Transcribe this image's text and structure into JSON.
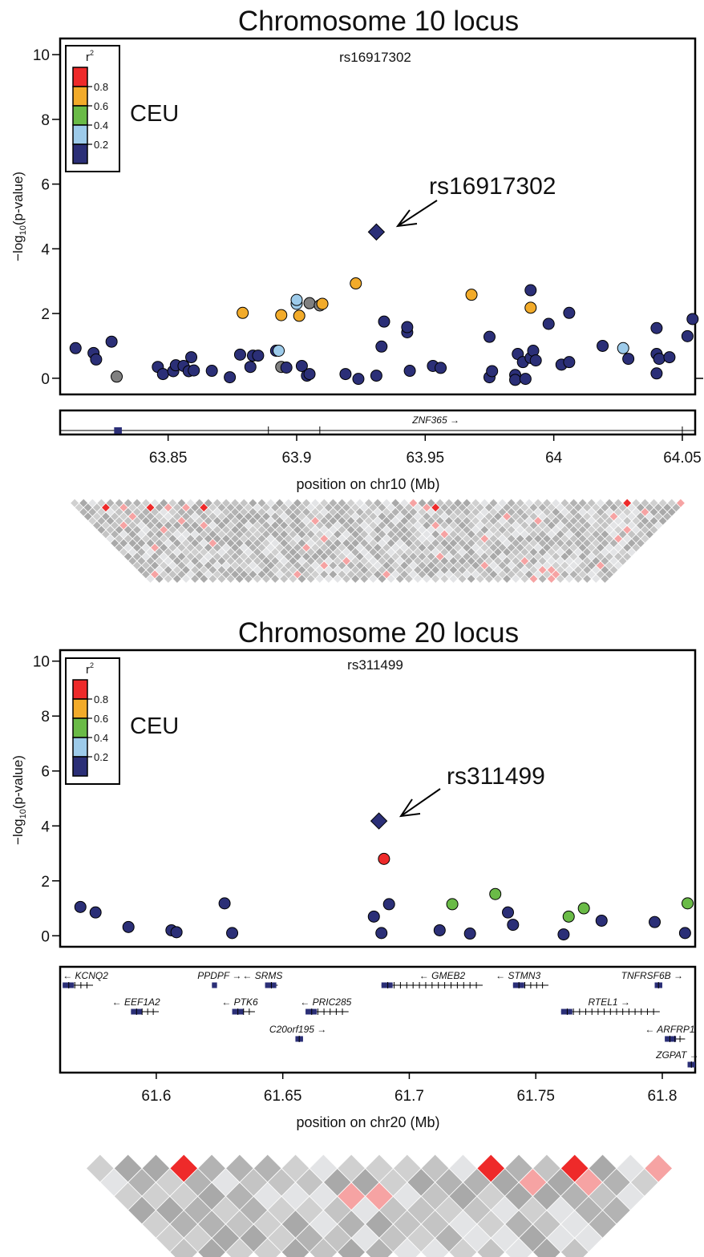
{
  "legend": {
    "title_base": "r",
    "title_sup": "2",
    "ticks": [
      "0.8",
      "0.6",
      "0.4",
      "0.2"
    ],
    "colors": [
      "#ee2a2a",
      "#f2ab2a",
      "#6abb47",
      "#9dcbea",
      "#2b2f77"
    ],
    "population": "CEU"
  },
  "colors": {
    "high": "#ee2a2a",
    "mid_high": "#f2ab2a",
    "mid": "#6abb47",
    "low": "#9dcbea",
    "lowest": "#2b2f77",
    "missing": "#808080",
    "gene_box": "#2b2f77",
    "ld_gray": "#b3b3b3"
  },
  "chart_data": [
    {
      "type": "scatter",
      "title": "Chromosome 10 locus",
      "top_label": "rs16917302",
      "ylabel_pre": "−log",
      "ylabel_sub": "10",
      "ylabel_post": "(p-value)",
      "xlabel": "position on chr10 (Mb)",
      "xlim": [
        63.808,
        64.055
      ],
      "ylim": [
        -0.5,
        10.5
      ],
      "yticks": [
        "0",
        "2",
        "4",
        "6",
        "8",
        "10"
      ],
      "xticks": [
        "63.85",
        "63.9",
        "63.95",
        "64",
        "64.05"
      ],
      "lead": {
        "name": "rs16917302",
        "x": 63.931,
        "y": 4.52
      },
      "points": [
        {
          "x": 63.814,
          "y": 0.93,
          "c": "lowest"
        },
        {
          "x": 63.821,
          "y": 0.78,
          "c": "lowest"
        },
        {
          "x": 63.822,
          "y": 0.58,
          "c": "lowest"
        },
        {
          "x": 63.828,
          "y": 1.13,
          "c": "lowest"
        },
        {
          "x": 63.83,
          "y": 0.05,
          "c": "missing"
        },
        {
          "x": 63.846,
          "y": 0.35,
          "c": "lowest"
        },
        {
          "x": 63.848,
          "y": 0.13,
          "c": "lowest"
        },
        {
          "x": 63.852,
          "y": 0.22,
          "c": "lowest"
        },
        {
          "x": 63.853,
          "y": 0.4,
          "c": "lowest"
        },
        {
          "x": 63.856,
          "y": 0.38,
          "c": "lowest"
        },
        {
          "x": 63.858,
          "y": 0.22,
          "c": "lowest"
        },
        {
          "x": 63.859,
          "y": 0.65,
          "c": "lowest"
        },
        {
          "x": 63.86,
          "y": 0.24,
          "c": "lowest"
        },
        {
          "x": 63.867,
          "y": 0.23,
          "c": "lowest"
        },
        {
          "x": 63.874,
          "y": 0.03,
          "c": "lowest"
        },
        {
          "x": 63.878,
          "y": 0.73,
          "c": "lowest"
        },
        {
          "x": 63.879,
          "y": 2.02,
          "c": "mid_high"
        },
        {
          "x": 63.882,
          "y": 0.35,
          "c": "lowest"
        },
        {
          "x": 63.883,
          "y": 0.7,
          "c": "lowest"
        },
        {
          "x": 63.885,
          "y": 0.7,
          "c": "lowest"
        },
        {
          "x": 63.892,
          "y": 0.85,
          "c": "lowest"
        },
        {
          "x": 63.893,
          "y": 0.85,
          "c": "low"
        },
        {
          "x": 63.894,
          "y": 0.35,
          "c": "missing"
        },
        {
          "x": 63.894,
          "y": 1.95,
          "c": "mid_high"
        },
        {
          "x": 63.896,
          "y": 0.33,
          "c": "lowest"
        },
        {
          "x": 63.9,
          "y": 2.3,
          "c": "low"
        },
        {
          "x": 63.9,
          "y": 2.42,
          "c": "low"
        },
        {
          "x": 63.901,
          "y": 1.93,
          "c": "mid_high"
        },
        {
          "x": 63.902,
          "y": 0.38,
          "c": "lowest"
        },
        {
          "x": 63.904,
          "y": 0.08,
          "c": "lowest"
        },
        {
          "x": 63.905,
          "y": 0.13,
          "c": "lowest"
        },
        {
          "x": 63.905,
          "y": 2.32,
          "c": "missing"
        },
        {
          "x": 63.909,
          "y": 2.25,
          "c": "missing"
        },
        {
          "x": 63.91,
          "y": 2.3,
          "c": "mid_high"
        },
        {
          "x": 63.919,
          "y": 0.13,
          "c": "lowest"
        },
        {
          "x": 63.923,
          "y": 2.93,
          "c": "mid_high"
        },
        {
          "x": 63.924,
          "y": -0.02,
          "c": "lowest"
        },
        {
          "x": 63.931,
          "y": 0.08,
          "c": "lowest"
        },
        {
          "x": 63.933,
          "y": 0.98,
          "c": "lowest"
        },
        {
          "x": 63.934,
          "y": 1.75,
          "c": "lowest"
        },
        {
          "x": 63.943,
          "y": 1.42,
          "c": "lowest"
        },
        {
          "x": 63.943,
          "y": 1.58,
          "c": "lowest"
        },
        {
          "x": 63.944,
          "y": 0.23,
          "c": "lowest"
        },
        {
          "x": 63.953,
          "y": 0.38,
          "c": "lowest"
        },
        {
          "x": 63.956,
          "y": 0.32,
          "c": "lowest"
        },
        {
          "x": 63.968,
          "y": 2.58,
          "c": "mid_high"
        },
        {
          "x": 63.975,
          "y": 1.28,
          "c": "lowest"
        },
        {
          "x": 63.975,
          "y": 0.03,
          "c": "lowest"
        },
        {
          "x": 63.976,
          "y": 0.22,
          "c": "lowest"
        },
        {
          "x": 63.985,
          "y": 0.1,
          "c": "lowest"
        },
        {
          "x": 63.985,
          "y": -0.05,
          "c": "lowest"
        },
        {
          "x": 63.986,
          "y": 0.75,
          "c": "lowest"
        },
        {
          "x": 63.988,
          "y": 0.5,
          "c": "lowest"
        },
        {
          "x": 63.989,
          "y": -0.02,
          "c": "lowest"
        },
        {
          "x": 63.991,
          "y": 2.72,
          "c": "lowest"
        },
        {
          "x": 63.991,
          "y": 2.18,
          "c": "mid_high"
        },
        {
          "x": 63.991,
          "y": 0.63,
          "c": "lowest"
        },
        {
          "x": 63.992,
          "y": 0.85,
          "c": "lowest"
        },
        {
          "x": 63.993,
          "y": 0.55,
          "c": "lowest"
        },
        {
          "x": 63.998,
          "y": 1.68,
          "c": "lowest"
        },
        {
          "x": 64.003,
          "y": 0.42,
          "c": "lowest"
        },
        {
          "x": 64.006,
          "y": 2.02,
          "c": "lowest"
        },
        {
          "x": 64.006,
          "y": 0.5,
          "c": "lowest"
        },
        {
          "x": 64.019,
          "y": 1.0,
          "c": "lowest"
        },
        {
          "x": 64.027,
          "y": 0.93,
          "c": "low"
        },
        {
          "x": 64.029,
          "y": 0.6,
          "c": "lowest"
        },
        {
          "x": 64.04,
          "y": 1.55,
          "c": "lowest"
        },
        {
          "x": 64.04,
          "y": 0.75,
          "c": "lowest"
        },
        {
          "x": 64.041,
          "y": 0.6,
          "c": "lowest"
        },
        {
          "x": 64.04,
          "y": 0.15,
          "c": "lowest"
        },
        {
          "x": 64.045,
          "y": 0.65,
          "c": "lowest"
        },
        {
          "x": 64.052,
          "y": 1.3,
          "c": "lowest"
        },
        {
          "x": 64.054,
          "y": 1.83,
          "c": "lowest"
        }
      ]
    },
    {
      "type": "scatter",
      "title": "Chromosome 20 locus",
      "top_label": "rs311499",
      "ylabel_pre": "−log",
      "ylabel_sub": "10",
      "ylabel_post": "(p-value)",
      "xlabel": "position on chr20 (Mb)",
      "xlim": [
        61.562,
        61.813
      ],
      "ylim": [
        -0.4,
        10.4
      ],
      "yticks": [
        "0",
        "2",
        "4",
        "6",
        "8",
        "10"
      ],
      "xticks": [
        "61.6",
        "61.65",
        "61.7",
        "61.75",
        "61.8"
      ],
      "lead": {
        "name": "rs311499",
        "x": 61.688,
        "y": 4.18
      },
      "points": [
        {
          "x": 61.57,
          "y": 1.05,
          "c": "lowest"
        },
        {
          "x": 61.576,
          "y": 0.85,
          "c": "lowest"
        },
        {
          "x": 61.589,
          "y": 0.32,
          "c": "lowest"
        },
        {
          "x": 61.606,
          "y": 0.2,
          "c": "lowest"
        },
        {
          "x": 61.608,
          "y": 0.13,
          "c": "lowest"
        },
        {
          "x": 61.627,
          "y": 1.18,
          "c": "lowest"
        },
        {
          "x": 61.63,
          "y": 0.1,
          "c": "lowest"
        },
        {
          "x": 61.686,
          "y": 0.7,
          "c": "lowest"
        },
        {
          "x": 61.689,
          "y": 0.1,
          "c": "lowest"
        },
        {
          "x": 61.69,
          "y": 2.8,
          "c": "high"
        },
        {
          "x": 61.692,
          "y": 1.15,
          "c": "lowest"
        },
        {
          "x": 61.712,
          "y": 0.2,
          "c": "lowest"
        },
        {
          "x": 61.717,
          "y": 1.15,
          "c": "mid"
        },
        {
          "x": 61.724,
          "y": 0.08,
          "c": "lowest"
        },
        {
          "x": 61.734,
          "y": 1.52,
          "c": "mid"
        },
        {
          "x": 61.739,
          "y": 0.85,
          "c": "lowest"
        },
        {
          "x": 61.741,
          "y": 0.4,
          "c": "lowest"
        },
        {
          "x": 61.761,
          "y": 0.05,
          "c": "lowest"
        },
        {
          "x": 61.763,
          "y": 0.7,
          "c": "mid"
        },
        {
          "x": 61.769,
          "y": 1.0,
          "c": "mid"
        },
        {
          "x": 61.776,
          "y": 0.55,
          "c": "lowest"
        },
        {
          "x": 61.797,
          "y": 0.5,
          "c": "lowest"
        },
        {
          "x": 61.809,
          "y": 0.1,
          "c": "lowest"
        },
        {
          "x": 61.81,
          "y": 1.18,
          "c": "mid"
        }
      ]
    }
  ],
  "genes_chr10": [
    {
      "name": "ZNF365",
      "dir": "right",
      "start": 63.83,
      "end": 64.051,
      "label_x": 63.945,
      "exons": [
        [
          63.829,
          63.832
        ],
        [
          63.889
        ],
        [
          63.909
        ],
        [
          64.05
        ]
      ]
    }
  ],
  "genes_chr20": [
    {
      "name": "KCNQ2",
      "dir": "left",
      "start": 61.563,
      "end": 61.575,
      "row": 0,
      "label_x": 61.572
    },
    {
      "name": "PPDPF",
      "dir": "right",
      "start": 61.622,
      "end": 61.624,
      "row": 0,
      "label_x": 61.625
    },
    {
      "name": "SRMS",
      "dir": "left",
      "start": 61.643,
      "end": 61.648,
      "row": 0,
      "label_x": 61.642
    },
    {
      "name": "GMEB2",
      "dir": "left",
      "start": 61.689,
      "end": 61.729,
      "row": 0,
      "label_x": 61.713
    },
    {
      "name": "STMN3",
      "dir": "left",
      "start": 61.741,
      "end": 61.755,
      "row": 0,
      "label_x": 61.743
    },
    {
      "name": "TNFRSF6B",
      "dir": "right",
      "start": 61.797,
      "end": 61.8,
      "row": 0,
      "label_x": 61.796
    },
    {
      "name": "EEF1A2",
      "dir": "left",
      "start": 61.59,
      "end": 61.601,
      "row": 1,
      "label_x": 61.592
    },
    {
      "name": "PTK6",
      "dir": "left",
      "start": 61.63,
      "end": 61.639,
      "row": 1,
      "label_x": 61.633
    },
    {
      "name": "PRIC285",
      "dir": "left",
      "start": 61.659,
      "end": 61.676,
      "row": 1,
      "label_x": 61.667
    },
    {
      "name": "RTEL1",
      "dir": "right",
      "start": 61.76,
      "end": 61.799,
      "row": 1,
      "label_x": 61.779
    },
    {
      "name": "C20orf195",
      "dir": "right",
      "start": 61.655,
      "end": 61.658,
      "row": 2,
      "label_x": 61.656
    },
    {
      "name": "ARFRP1",
      "dir": "left",
      "start": 61.801,
      "end": 61.809,
      "row": 2,
      "label_x": 61.803
    },
    {
      "name": "ZGPAT",
      "dir": "right",
      "start": 61.81,
      "end": 61.813,
      "row": 3,
      "label_x": 61.806
    }
  ]
}
